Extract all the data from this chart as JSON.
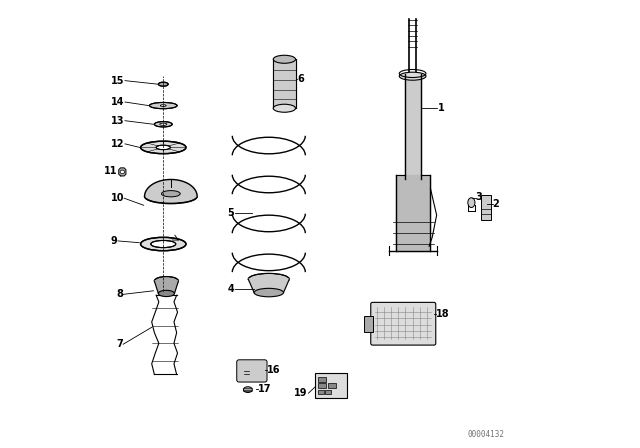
{
  "bg_color": "#ffffff",
  "line_color": "#000000",
  "fig_width": 6.4,
  "fig_height": 4.48,
  "dpi": 100,
  "watermark": "00004132"
}
